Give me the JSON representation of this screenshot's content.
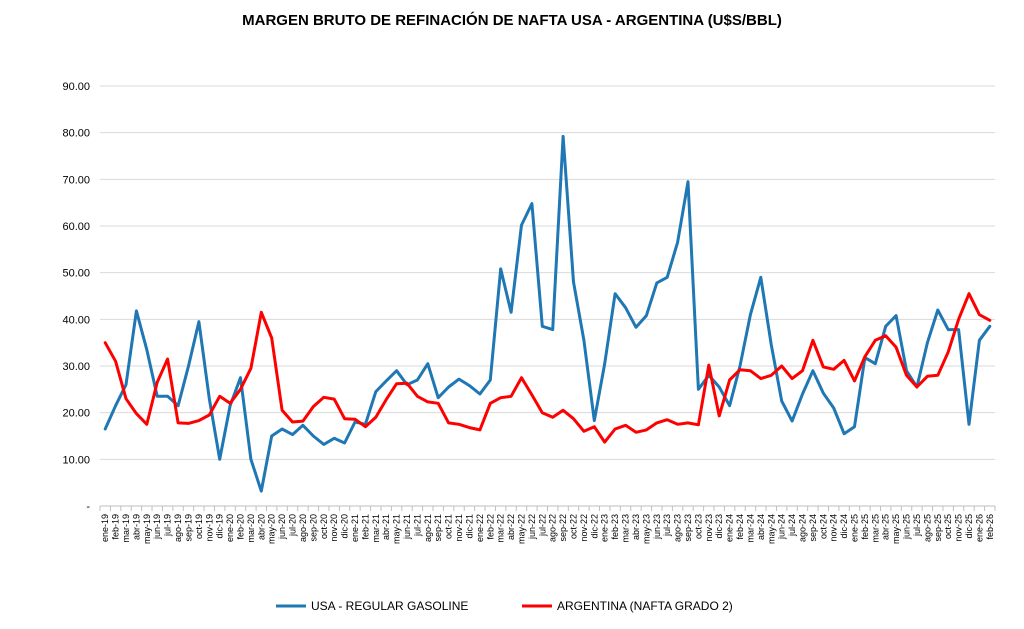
{
  "chart_data": {
    "type": "line",
    "title": "MARGEN BRUTO DE REFINACIÓN DE NAFTA USA - ARGENTINA (U$S/BBL)",
    "ylim": [
      0,
      90
    ],
    "y_ticks": [
      "-",
      "10.00",
      "20.00",
      "30.00",
      "40.00",
      "50.00",
      "60.00",
      "70.00",
      "80.00",
      "90.00"
    ],
    "grid": true,
    "legend_position": "bottom",
    "categories": [
      "ene-19",
      "feb-19",
      "mar-19",
      "abr-19",
      "may-19",
      "jun-19",
      "jul-19",
      "ago-19",
      "sep-19",
      "oct-19",
      "nov-19",
      "dic-19",
      "ene-20",
      "feb-20",
      "mar-20",
      "abr-20",
      "may-20",
      "jun-20",
      "jul-20",
      "ago-20",
      "sep-20",
      "oct-20",
      "nov-20",
      "dic-20",
      "ene-21",
      "feb-21",
      "mar-21",
      "abr-21",
      "may-21",
      "jun-21",
      "jul-21",
      "ago-21",
      "sep-21",
      "oct-21",
      "nov-21",
      "dic-21",
      "ene-22",
      "feb-22",
      "mar-22",
      "abr-22",
      "may-22",
      "jun-22",
      "jul-22",
      "ago-22",
      "sep-22",
      "oct-22",
      "nov-22",
      "dic-22",
      "ene-23",
      "feb-23",
      "mar-23",
      "abr-23",
      "may-23",
      "jun-23",
      "jul-23",
      "ago-23",
      "sep-23",
      "oct-23",
      "nov-23",
      "dic-23",
      "ene-24",
      "feb-24",
      "mar-24",
      "abr-24",
      "may-24",
      "jun-24",
      "jul-24",
      "ago-24",
      "sep-24",
      "oct-24",
      "nov-24",
      "dic-24",
      "ene-25",
      "feb-25",
      "mar-25",
      "abr-25",
      "may-25",
      "jun-25",
      "jul-25",
      "ago-25",
      "sep-25",
      "oct-25",
      "nov-25",
      "dic-25",
      "ene-26",
      "feb-26"
    ],
    "series": [
      {
        "name": "USA - REGULAR GASOLINE",
        "color": "#1F77B4",
        "values": [
          16.5,
          21.5,
          26.0,
          41.8,
          33.5,
          23.5,
          23.5,
          21.5,
          30.0,
          39.5,
          23.0,
          10.0,
          21.5,
          27.5,
          10.0,
          3.2,
          15.0,
          16.5,
          15.3,
          17.3,
          15.0,
          13.2,
          14.5,
          13.5,
          18.0,
          17.5,
          24.5,
          26.8,
          29.0,
          26.0,
          27.0,
          30.5,
          23.2,
          25.5,
          27.2,
          25.8,
          24.0,
          27.0,
          50.8,
          41.5,
          60.2,
          64.8,
          38.5,
          37.8,
          79.2,
          48.0,
          35.5,
          18.3,
          30.5,
          45.5,
          42.5,
          38.3,
          40.8,
          47.8,
          49.0,
          56.5,
          69.5,
          25.0,
          28.0,
          25.5,
          21.5,
          30.0,
          41.0,
          49.0,
          34.5,
          22.5,
          18.2,
          24.0,
          29.0,
          24.2,
          21.0,
          15.5,
          17.0,
          31.8,
          30.5,
          38.5,
          40.8,
          29.0,
          25.5,
          35.0,
          42.0,
          37.8,
          37.8,
          17.5,
          35.5,
          38.5
        ]
      },
      {
        "name": "ARGENTINA (NAFTA GRADO 2)",
        "color": "#FF0000",
        "values": [
          35.0,
          31.0,
          23.0,
          19.8,
          17.5,
          26.5,
          31.5,
          17.8,
          17.7,
          18.3,
          19.5,
          23.5,
          22.0,
          25.0,
          29.5,
          41.5,
          36.0,
          20.5,
          18.0,
          18.2,
          21.3,
          23.3,
          22.9,
          18.7,
          18.6,
          17.0,
          19.0,
          22.8,
          26.2,
          26.3,
          23.5,
          22.3,
          22.0,
          17.8,
          17.5,
          16.8,
          16.3,
          22.0,
          23.2,
          23.5,
          27.5,
          23.8,
          20.0,
          19.0,
          20.5,
          18.7,
          16.0,
          17.0,
          13.7,
          16.5,
          17.3,
          15.8,
          16.3,
          17.8,
          18.5,
          17.5,
          17.8,
          17.4,
          30.2,
          19.3,
          27.0,
          29.2,
          29.0,
          27.3,
          28.0,
          30.0,
          27.3,
          29.0,
          35.5,
          29.8,
          29.3,
          31.2,
          26.8,
          32.0,
          35.5,
          36.5,
          34.0,
          28.0,
          25.5,
          27.8,
          28.0,
          33.0,
          40.0,
          45.5,
          41.0,
          39.8
        ]
      }
    ]
  }
}
